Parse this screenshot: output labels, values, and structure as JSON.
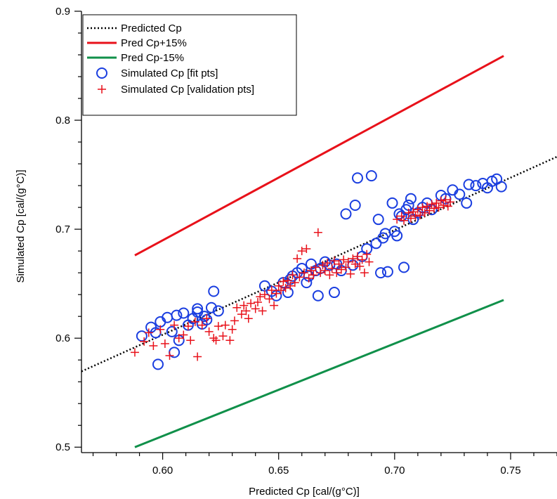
{
  "chart_data": {
    "type": "scatter",
    "title": "",
    "xlabel": "Predicted Cp [cal/(g°C)]",
    "ylabel": "Simulated Cp [cal/(g°C)]",
    "xlim": [
      0.565,
      0.77
    ],
    "ylim": [
      0.495,
      0.9
    ],
    "x_ticks": [
      0.6,
      0.65,
      0.7,
      0.75
    ],
    "x_tick_labels": [
      "0.60",
      "0.65",
      "0.70",
      "0.75"
    ],
    "y_ticks": [
      0.5,
      0.6,
      0.7,
      0.8,
      0.9
    ],
    "y_tick_labels": [
      "0.5",
      "0.6",
      "0.7",
      "0.8",
      "0.9"
    ],
    "grid": false,
    "legend_position": "top-left",
    "series": [
      {
        "name": "Predicted Cp",
        "kind": "line",
        "style": "dotted",
        "color": "#000000",
        "x": [
          0.565,
          0.77
        ],
        "y": [
          0.5695,
          0.7665
        ]
      },
      {
        "name": "Pred Cp+15%",
        "kind": "line",
        "style": "solid",
        "color": "#e8111a",
        "x": [
          0.588,
          0.747
        ],
        "y": [
          0.676,
          0.859
        ]
      },
      {
        "name": "Pred Cp-15%",
        "kind": "line",
        "style": "solid",
        "color": "#10904a",
        "x": [
          0.588,
          0.747
        ],
        "y": [
          0.5,
          0.635
        ]
      },
      {
        "name": "Simulated Cp [fit pts]",
        "kind": "markers",
        "marker": "circle",
        "color": "#1a3ee0",
        "points": [
          [
            0.591,
            0.602
          ],
          [
            0.595,
            0.61
          ],
          [
            0.597,
            0.605
          ],
          [
            0.598,
            0.576
          ],
          [
            0.599,
            0.615
          ],
          [
            0.602,
            0.619
          ],
          [
            0.604,
            0.606
          ],
          [
            0.605,
            0.587
          ],
          [
            0.606,
            0.621
          ],
          [
            0.607,
            0.598
          ],
          [
            0.609,
            0.623
          ],
          [
            0.611,
            0.612
          ],
          [
            0.613,
            0.618
          ],
          [
            0.615,
            0.624
          ],
          [
            0.615,
            0.627
          ],
          [
            0.617,
            0.613
          ],
          [
            0.618,
            0.62
          ],
          [
            0.619,
            0.617
          ],
          [
            0.621,
            0.628
          ],
          [
            0.622,
            0.643
          ],
          [
            0.624,
            0.625
          ],
          [
            0.644,
            0.648
          ],
          [
            0.647,
            0.643
          ],
          [
            0.649,
            0.639
          ],
          [
            0.652,
            0.651
          ],
          [
            0.654,
            0.642
          ],
          [
            0.655,
            0.654
          ],
          [
            0.656,
            0.657
          ],
          [
            0.658,
            0.66
          ],
          [
            0.66,
            0.664
          ],
          [
            0.662,
            0.651
          ],
          [
            0.663,
            0.657
          ],
          [
            0.664,
            0.668
          ],
          [
            0.666,
            0.662
          ],
          [
            0.667,
            0.639
          ],
          [
            0.668,
            0.664
          ],
          [
            0.67,
            0.67
          ],
          [
            0.672,
            0.667
          ],
          [
            0.674,
            0.642
          ],
          [
            0.675,
            0.668
          ],
          [
            0.677,
            0.662
          ],
          [
            0.679,
            0.714
          ],
          [
            0.682,
            0.667
          ],
          [
            0.683,
            0.722
          ],
          [
            0.684,
            0.747
          ],
          [
            0.686,
            0.675
          ],
          [
            0.688,
            0.682
          ],
          [
            0.69,
            0.749
          ],
          [
            0.692,
            0.687
          ],
          [
            0.693,
            0.709
          ],
          [
            0.694,
            0.66
          ],
          [
            0.695,
            0.692
          ],
          [
            0.696,
            0.696
          ],
          [
            0.697,
            0.661
          ],
          [
            0.699,
            0.724
          ],
          [
            0.7,
            0.698
          ],
          [
            0.701,
            0.694
          ],
          [
            0.702,
            0.714
          ],
          [
            0.703,
            0.712
          ],
          [
            0.704,
            0.665
          ],
          [
            0.705,
            0.718
          ],
          [
            0.706,
            0.722
          ],
          [
            0.707,
            0.728
          ],
          [
            0.708,
            0.709
          ],
          [
            0.71,
            0.715
          ],
          [
            0.712,
            0.72
          ],
          [
            0.714,
            0.724
          ],
          [
            0.716,
            0.718
          ],
          [
            0.72,
            0.731
          ],
          [
            0.722,
            0.728
          ],
          [
            0.725,
            0.736
          ],
          [
            0.728,
            0.732
          ],
          [
            0.731,
            0.724
          ],
          [
            0.732,
            0.741
          ],
          [
            0.735,
            0.74
          ],
          [
            0.738,
            0.742
          ],
          [
            0.74,
            0.738
          ],
          [
            0.742,
            0.744
          ],
          [
            0.744,
            0.746
          ],
          [
            0.746,
            0.739
          ]
        ]
      },
      {
        "name": "Simulated Cp [validation pts]",
        "kind": "markers",
        "marker": "plus",
        "color": "#e8111a",
        "points": [
          [
            0.588,
            0.587
          ],
          [
            0.592,
            0.597
          ],
          [
            0.594,
            0.605
          ],
          [
            0.596,
            0.593
          ],
          [
            0.599,
            0.608
          ],
          [
            0.601,
            0.595
          ],
          [
            0.603,
            0.584
          ],
          [
            0.605,
            0.612
          ],
          [
            0.607,
            0.6
          ],
          [
            0.609,
            0.603
          ],
          [
            0.611,
            0.611
          ],
          [
            0.612,
            0.598
          ],
          [
            0.614,
            0.615
          ],
          [
            0.615,
            0.583
          ],
          [
            0.617,
            0.612
          ],
          [
            0.619,
            0.618
          ],
          [
            0.62,
            0.606
          ],
          [
            0.622,
            0.6
          ],
          [
            0.623,
            0.598
          ],
          [
            0.624,
            0.611
          ],
          [
            0.626,
            0.602
          ],
          [
            0.627,
            0.612
          ],
          [
            0.629,
            0.598
          ],
          [
            0.63,
            0.608
          ],
          [
            0.631,
            0.616
          ],
          [
            0.632,
            0.628
          ],
          [
            0.634,
            0.622
          ],
          [
            0.635,
            0.63
          ],
          [
            0.636,
            0.625
          ],
          [
            0.637,
            0.618
          ],
          [
            0.638,
            0.632
          ],
          [
            0.64,
            0.627
          ],
          [
            0.641,
            0.633
          ],
          [
            0.642,
            0.638
          ],
          [
            0.643,
            0.625
          ],
          [
            0.644,
            0.64
          ],
          [
            0.646,
            0.636
          ],
          [
            0.647,
            0.644
          ],
          [
            0.648,
            0.63
          ],
          [
            0.649,
            0.641
          ],
          [
            0.65,
            0.648
          ],
          [
            0.651,
            0.644
          ],
          [
            0.652,
            0.652
          ],
          [
            0.653,
            0.646
          ],
          [
            0.654,
            0.653
          ],
          [
            0.655,
            0.648
          ],
          [
            0.656,
            0.658
          ],
          [
            0.657,
            0.651
          ],
          [
            0.658,
            0.673
          ],
          [
            0.659,
            0.656
          ],
          [
            0.66,
            0.68
          ],
          [
            0.661,
            0.66
          ],
          [
            0.662,
            0.682
          ],
          [
            0.663,
            0.655
          ],
          [
            0.664,
            0.662
          ],
          [
            0.665,
            0.658
          ],
          [
            0.666,
            0.665
          ],
          [
            0.667,
            0.697
          ],
          [
            0.668,
            0.66
          ],
          [
            0.669,
            0.667
          ],
          [
            0.67,
            0.662
          ],
          [
            0.671,
            0.669
          ],
          [
            0.672,
            0.658
          ],
          [
            0.673,
            0.664
          ],
          [
            0.674,
            0.671
          ],
          [
            0.675,
            0.66
          ],
          [
            0.676,
            0.668
          ],
          [
            0.677,
            0.663
          ],
          [
            0.678,
            0.672
          ],
          [
            0.679,
            0.665
          ],
          [
            0.68,
            0.67
          ],
          [
            0.681,
            0.659
          ],
          [
            0.682,
            0.673
          ],
          [
            0.683,
            0.668
          ],
          [
            0.684,
            0.675
          ],
          [
            0.685,
            0.666
          ],
          [
            0.686,
            0.672
          ],
          [
            0.687,
            0.66
          ],
          [
            0.688,
            0.677
          ],
          [
            0.689,
            0.67
          ],
          [
            0.701,
            0.709
          ],
          [
            0.703,
            0.712
          ],
          [
            0.704,
            0.708
          ],
          [
            0.706,
            0.715
          ],
          [
            0.707,
            0.71
          ],
          [
            0.708,
            0.716
          ],
          [
            0.709,
            0.712
          ],
          [
            0.71,
            0.718
          ],
          [
            0.711,
            0.713
          ],
          [
            0.712,
            0.72
          ],
          [
            0.713,
            0.715
          ],
          [
            0.714,
            0.721
          ],
          [
            0.715,
            0.717
          ],
          [
            0.716,
            0.723
          ],
          [
            0.717,
            0.719
          ],
          [
            0.718,
            0.724
          ],
          [
            0.719,
            0.72
          ],
          [
            0.72,
            0.726
          ],
          [
            0.721,
            0.722
          ],
          [
            0.722,
            0.727
          ],
          [
            0.723,
            0.721
          ],
          [
            0.724,
            0.725
          ]
        ]
      }
    ]
  }
}
